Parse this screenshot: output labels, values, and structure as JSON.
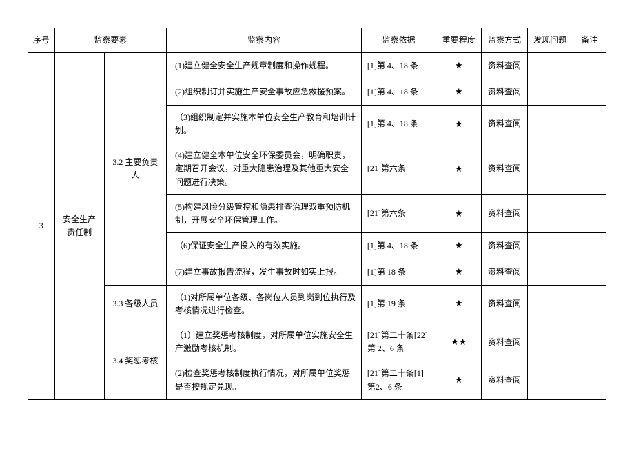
{
  "headers": {
    "seq": "序号",
    "element": "监察要素",
    "content": "监察内容",
    "basis": "监察依据",
    "importance": "重要程度",
    "method": "监察方式",
    "issue": "发现问题",
    "remark": "备注"
  },
  "group": {
    "seq": "3",
    "element_main": "安全生产责任制"
  },
  "sub1": {
    "label": "3.2 主要负责人",
    "rows": [
      {
        "content": "(1)建立健全安全生产规章制度和操作规程。",
        "basis": "[1]第 4、18 条",
        "importance": "★",
        "method": "资料查阅"
      },
      {
        "content": "(2)组织制订并实施生产安全事故应急救援预案。",
        "basis": "[1]第 4、18 条",
        "importance": "★",
        "method": "资料查阅"
      },
      {
        "content": "（3)组织制定并实施本单位安全生产教育和培训计划。",
        "basis": "[1]第 4、18 条",
        "importance": "★",
        "method": "资料查阅"
      },
      {
        "content": "(4)建立健全本单位安全环保委员会，明确职责，定期召开会议，对重大隐患治理及其他重大安全问题进行决策。",
        "basis": "[21]第六条",
        "importance": "★",
        "method": "资料查阅"
      },
      {
        "content": "(5)构建风险分级管控和隐患排查治理双重预防机制，开展安全环保管理工作。",
        "basis": "[21]第六条",
        "importance": "★",
        "method": "资料查阅"
      },
      {
        "content": "（6)保证安全生产投入的有效实施。",
        "basis": "[1]第 4、18 条",
        "importance": "★",
        "method": "资料查阅"
      },
      {
        "content": "(7)建立事故报告流程，发生事故时如实上报。",
        "basis": "[1]第 18 条",
        "importance": "★",
        "method": "资料查阅"
      }
    ]
  },
  "sub2": {
    "label": "3.3 各级人员",
    "rows": [
      {
        "content": "（1)对所属单位各级、各岗位人员到岗到位执行及考核情况进行检查。",
        "basis": "[1]第 19 条",
        "importance": "★",
        "method": "资料查阅"
      }
    ]
  },
  "sub3": {
    "label": "3.4 奖惩考核",
    "rows": [
      {
        "content": "（1）建立奖惩考核制度，对所属单位实施安全生产激励考核机制。",
        "basis": "[21]第二十条[22]第 2、6 条",
        "importance": "★★",
        "method": "资料查阅"
      },
      {
        "content": "(2)检查奖惩考核制度执行情况，对所属单位奖惩是否按规定兑现。",
        "basis": "[21]第二十条[1]第2、6 条",
        "importance": "★",
        "method": "资料查阅"
      }
    ]
  }
}
